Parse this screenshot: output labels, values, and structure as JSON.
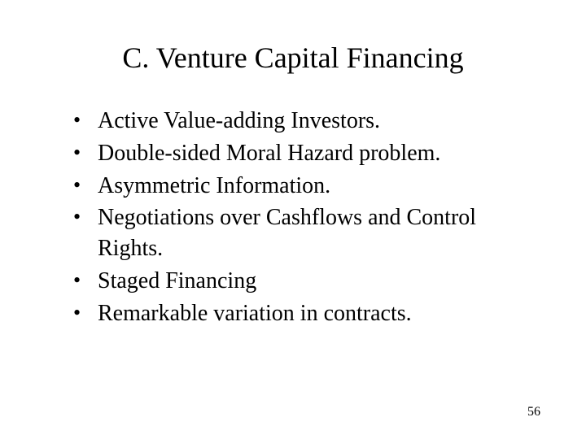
{
  "title": "C. Venture Capital Financing",
  "bullets": [
    "Active Value-adding Investors.",
    "Double-sided Moral Hazard problem.",
    "Asymmetric Information.",
    "Negotiations over Cashflows and Control Rights.",
    "Staged Financing",
    "Remarkable variation in contracts."
  ],
  "page_number": "56",
  "colors": {
    "background": "#ffffff",
    "text": "#000000"
  },
  "typography": {
    "font_family": "Times New Roman",
    "title_fontsize": 36,
    "body_fontsize": 28,
    "page_number_fontsize": 16
  }
}
